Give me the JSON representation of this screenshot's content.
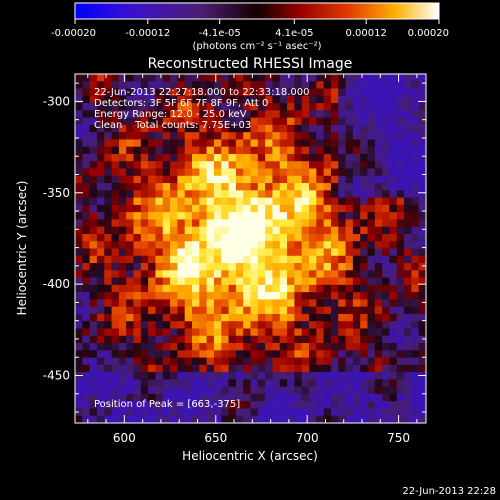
{
  "chart_data": {
    "type": "heatmap",
    "title": "Reconstructed RHESSI Image",
    "colorbar": {
      "tick_labels": [
        "-0.00020",
        "-0.00012",
        "-4.1e-05",
        "4.1e-05",
        "0.00012",
        "0.00020"
      ],
      "tick_values": [
        -0.0002,
        -0.00012,
        -4.1e-05,
        4.1e-05,
        0.00012,
        0.0002
      ],
      "range": [
        -0.0002,
        0.0002
      ],
      "units_label": "(photons cm⁻² s⁻¹ asec⁻²)",
      "colormap": "blue-purple-black-red-orange-yellow-white"
    },
    "annotations": [
      "22-Jun-2013 22:27:18.000 to 22:33:18.000",
      "Detectors: 3F 5F 6F 7F 8F 9F, Att 0",
      "Energy Range: 12.0 - 25.0 keV",
      "Clean    Total counts: 7.75E+03"
    ],
    "peak_label": "Position of Peak = [663,-375]",
    "peak_position": [
      663,
      -375
    ],
    "xlabel": "Heliocentric X (arcsec)",
    "ylabel": "Heliocentric Y (arcsec)",
    "xlim": [
      573,
      765
    ],
    "ylim": [
      -476,
      -285
    ],
    "xticks": [
      600,
      650,
      700,
      750
    ],
    "yticks": [
      -300,
      -350,
      -400,
      -450
    ],
    "grid": false,
    "footer": "22-Jun-2013 22:28"
  }
}
